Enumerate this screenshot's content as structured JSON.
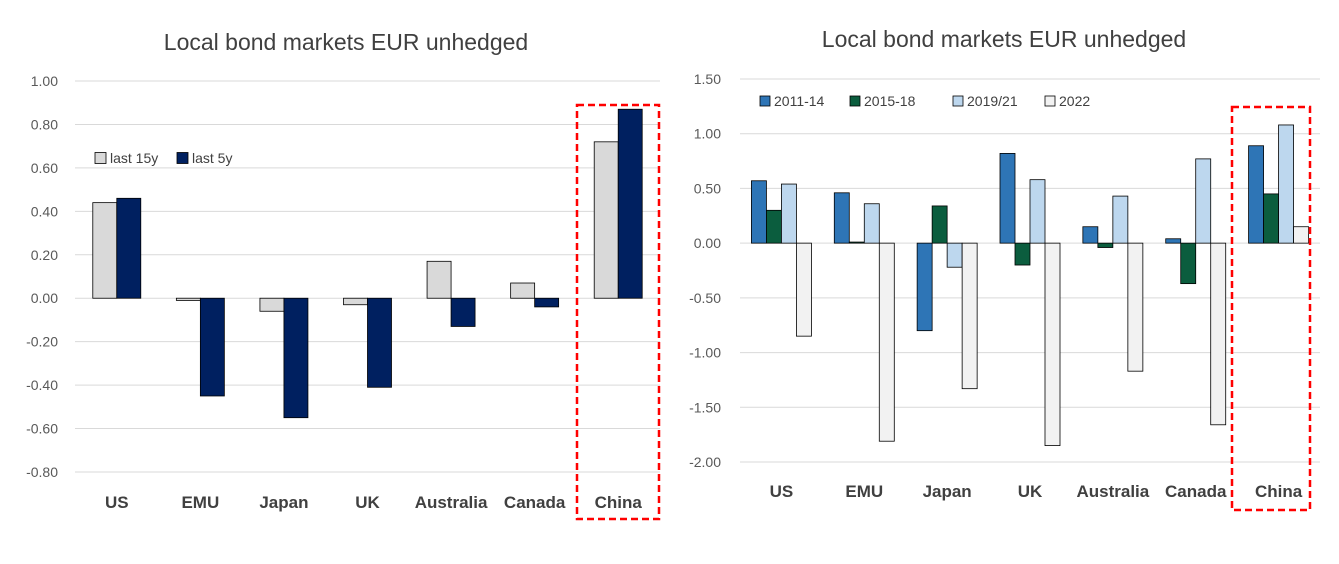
{
  "chart_data": [
    {
      "type": "bar",
      "title": "Local bond markets EUR unhedged",
      "categories": [
        "US",
        "EMU",
        "Japan",
        "UK",
        "Australia",
        "Canada",
        "China"
      ],
      "ylim": [
        -0.8,
        1.0
      ],
      "yticks": [
        "1.00",
        "0.80",
        "0.60",
        "0.40",
        "0.20",
        "0.00",
        "-0.20",
        "-0.40",
        "-0.60",
        "-0.80"
      ],
      "legend_position": "upper-left",
      "highlight_category": "China",
      "series": [
        {
          "name": "last 15y",
          "color": "#d9d9d9",
          "values": [
            0.44,
            -0.01,
            -0.06,
            -0.03,
            0.17,
            0.07,
            0.72
          ]
        },
        {
          "name": "last 5y",
          "color": "#002060",
          "values": [
            0.46,
            -0.45,
            -0.55,
            -0.41,
            -0.13,
            -0.04,
            0.87
          ]
        }
      ]
    },
    {
      "type": "bar",
      "title": "Local bond markets EUR unhedged",
      "categories": [
        "US",
        "EMU",
        "Japan",
        "UK",
        "Australia",
        "Canada",
        "China"
      ],
      "ylim": [
        -2.0,
        1.5
      ],
      "yticks": [
        "1.50",
        "1.00",
        "0.50",
        "0.00",
        "-0.50",
        "-1.00",
        "-1.50",
        "-2.00"
      ],
      "legend_position": "top-left",
      "highlight_category": "China",
      "series": [
        {
          "name": "2011-14",
          "color": "#2e75b6",
          "values": [
            0.57,
            0.46,
            -0.8,
            0.82,
            0.15,
            0.04,
            0.89
          ]
        },
        {
          "name": "2015-18",
          "color": "#0b5d3e",
          "values": [
            0.3,
            0.01,
            0.34,
            -0.2,
            -0.04,
            -0.37,
            0.45
          ]
        },
        {
          "name": "2019/21",
          "color": "#bdd7ee",
          "values": [
            0.54,
            0.36,
            -0.22,
            0.58,
            0.43,
            0.77,
            1.08
          ]
        },
        {
          "name": "2022",
          "color": "#f2f2f2",
          "values": [
            -0.85,
            -1.81,
            -1.33,
            -1.85,
            -1.17,
            -1.66,
            0.15
          ]
        }
      ]
    }
  ]
}
